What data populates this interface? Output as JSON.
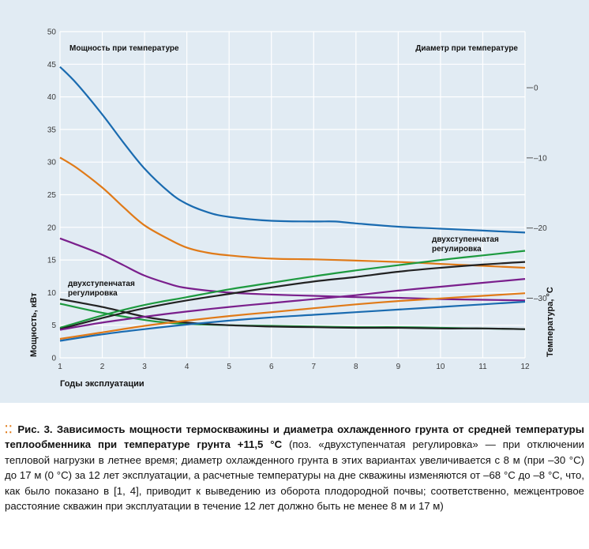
{
  "chart_data": {
    "type": "line",
    "x_label": "Годы эксплуатации",
    "y_label_left": "Мощность, кВт",
    "y_label_right": "Температура, °С",
    "x_ticks": [
      1,
      2,
      3,
      4,
      5,
      6,
      7,
      8,
      9,
      10,
      11,
      12
    ],
    "y_left_ticks": [
      0,
      5,
      10,
      15,
      20,
      25,
      30,
      35,
      40,
      45,
      50
    ],
    "y_left_range": [
      0,
      50
    ],
    "y_right_ticks": [
      "–30",
      "–20",
      "–10",
      "0"
    ],
    "y_right_tick_values": [
      -30,
      -20,
      -10,
      0
    ],
    "y_right_range": [
      -38.5,
      8
    ],
    "grid": true,
    "annotations": {
      "power_header": "Мощность при температуре",
      "diameter_header": "Диаметр при температуре",
      "two_stage_left": [
        "двухступенчатая",
        "регулировка"
      ],
      "two_stage_right": [
        "двухступенчатая",
        "регулировка"
      ]
    },
    "series": [
      {
        "color": "#1a6bb0",
        "axis": "left",
        "x": [
          1,
          1.4,
          2,
          2.5,
          3,
          3.6,
          4,
          4.5,
          5,
          6,
          7,
          7.5,
          8,
          9,
          10,
          11,
          12
        ],
        "values": [
          44.6,
          42,
          37.3,
          33,
          29,
          25.3,
          23.6,
          22.3,
          21.6,
          21,
          20.9,
          20.9,
          20.6,
          20.1,
          19.8,
          19.5,
          19.2
        ]
      },
      {
        "color": "#e07a18",
        "axis": "left",
        "x": [
          1,
          1.4,
          2,
          2.5,
          3,
          3.6,
          4,
          4.5,
          5,
          6,
          7,
          8,
          9,
          10,
          11,
          12
        ],
        "values": [
          30.7,
          29.1,
          26.1,
          23.1,
          20.3,
          18.1,
          16.9,
          16.1,
          15.7,
          15.2,
          15.1,
          14.9,
          14.7,
          14.4,
          14.1,
          13.8
        ]
      },
      {
        "color": "#7a1f8c",
        "axis": "left",
        "x": [
          1,
          1.5,
          2,
          2.5,
          3,
          3.6,
          4,
          5,
          6,
          7,
          8,
          9,
          10,
          11,
          12
        ],
        "values": [
          18.3,
          17.1,
          15.8,
          14.2,
          12.6,
          11.3,
          10.7,
          10,
          9.7,
          9.5,
          9.3,
          9.2,
          9,
          8.9,
          8.8
        ]
      },
      {
        "color": "#1d9a3f",
        "axis": "left",
        "x": [
          1,
          2,
          3,
          3.5,
          4,
          5,
          6,
          7,
          8,
          9,
          10,
          11,
          12
        ],
        "values": [
          8.3,
          6.9,
          5.8,
          5.4,
          5.2,
          5,
          4.9,
          4.8,
          4.7,
          4.7,
          4.6,
          4.5,
          4.4
        ]
      },
      {
        "color": "#222222",
        "axis": "left",
        "x": [
          1,
          2,
          3,
          3.5,
          4,
          5,
          6,
          7,
          8,
          9,
          10,
          11,
          12
        ],
        "values": [
          9,
          7.8,
          6.3,
          5.8,
          5.4,
          5,
          4.8,
          4.7,
          4.6,
          4.6,
          4.5,
          4.5,
          4.4
        ]
      },
      {
        "color": "#1d9a3f",
        "axis": "left",
        "x": [
          1,
          2,
          3,
          4,
          5,
          6,
          7,
          8,
          9,
          10,
          11,
          12
        ],
        "values": [
          4.6,
          6.5,
          8.1,
          9.3,
          10.5,
          11.5,
          12.5,
          13.4,
          14.2,
          15,
          15.7,
          16.4
        ]
      },
      {
        "color": "#222222",
        "axis": "left",
        "x": [
          1,
          2,
          3,
          4,
          5,
          6,
          7,
          8,
          9,
          10,
          11,
          12
        ],
        "values": [
          4.4,
          6.1,
          7.6,
          8.8,
          9.8,
          10.8,
          11.7,
          12.4,
          13.2,
          13.8,
          14.3,
          14.7
        ]
      },
      {
        "color": "#7a1f8c",
        "axis": "left",
        "x": [
          1,
          2,
          3,
          4,
          5,
          6,
          7,
          8,
          9,
          10,
          11,
          12
        ],
        "values": [
          4.3,
          5.4,
          6.3,
          7.1,
          7.8,
          8.4,
          9,
          9.6,
          10.3,
          10.9,
          11.5,
          12.1
        ]
      },
      {
        "color": "#e07a18",
        "axis": "left",
        "x": [
          1,
          2,
          3,
          4,
          5,
          6,
          7,
          8,
          9,
          10,
          11,
          12
        ],
        "values": [
          2.9,
          3.9,
          4.9,
          5.7,
          6.4,
          7,
          7.6,
          8.2,
          8.7,
          9.1,
          9.5,
          9.9
        ]
      },
      {
        "color": "#1a6bb0",
        "axis": "left",
        "x": [
          1,
          2,
          3,
          4,
          5,
          6,
          7,
          8,
          9,
          10,
          11,
          12
        ],
        "values": [
          2.6,
          3.6,
          4.4,
          5.1,
          5.7,
          6.2,
          6.6,
          7,
          7.4,
          7.8,
          8.2,
          8.6
        ]
      }
    ]
  },
  "caption": {
    "fig_label": "Рис. 3.",
    "title": "Зависимость мощности термоскважины и диаметра охлажденного грунта от средней температуры теплообменника при температуре грунта +11,5 °С",
    "body": "(поз. «двухступенчатая регулировка» — при отключении тепловой нагрузки в летнее время; диаметр охлажденного грунта в этих вариантах увеличивается с 8 м (при –30 °С) до 17 м (0 °С) за 12 лет эксплуатации, а расчетные температуры на дне скважины изменяются от –68 °С до –8 °С, что, как было показано в [1, 4], приводит к выведению из оборота плодородной почвы; соответственно, межцентровое расстояние скважин при эксплуатации в течение 12 лет должно быть не менее 8 м и 17 м)"
  }
}
